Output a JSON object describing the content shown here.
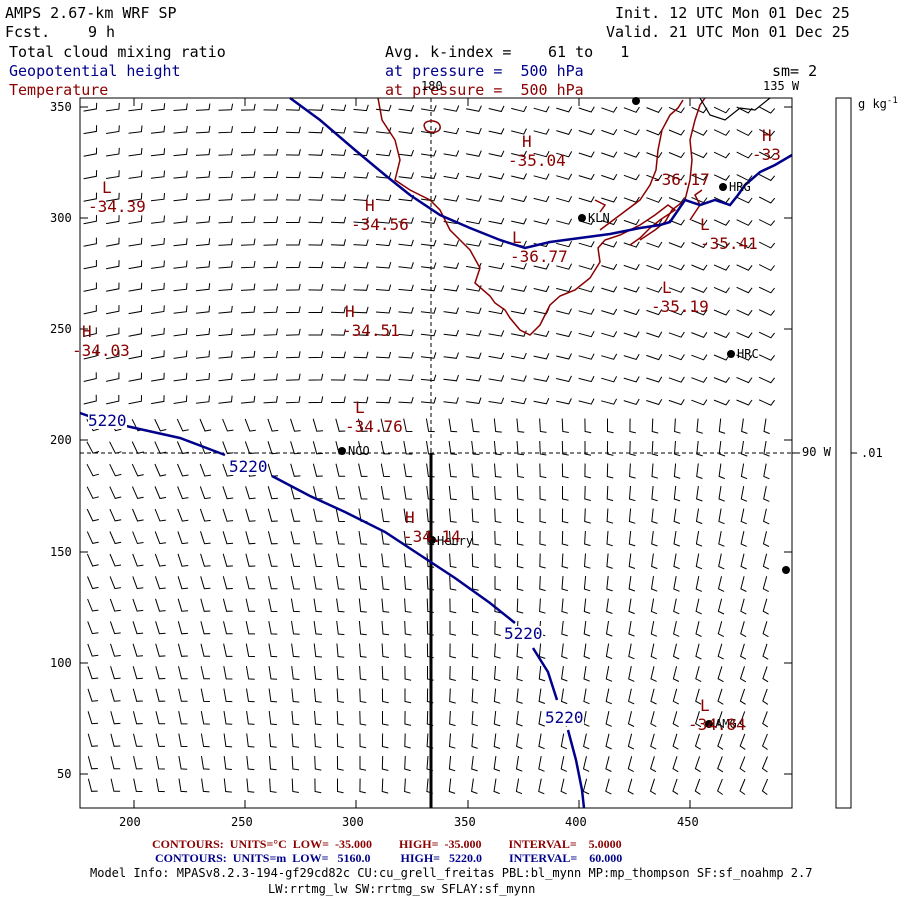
{
  "header": {
    "title": "AMPS 2.67-km WRF SP",
    "fcst_label": "Fcst.",
    "fcst_value": "9 h",
    "init": "Init. 12 UTC Mon 01 Dec 25",
    "valid": "Valid. 21 UTC Mon 01 Dec 25",
    "field1": "Total cloud mixing ratio",
    "field2": "Geopotential height",
    "field3": "Temperature",
    "avg_label": "Avg. k-index =",
    "avg_range": "61 to   1",
    "pressure_line1": "at pressure =  500 hPa",
    "pressure_line2": "at pressure =  500 hPa",
    "smoothing": "sm= 2"
  },
  "map": {
    "lon_labels": {
      "top": "180",
      "topright": "135 W",
      "right": "90 W"
    },
    "x_ticks": [
      "200",
      "250",
      "300",
      "350",
      "400",
      "450"
    ],
    "y_ticks": [
      "350",
      "300",
      "250",
      "200",
      "150",
      "100",
      "50"
    ],
    "stations": [
      {
        "name": "NCO"
      },
      {
        "name": "Henry"
      },
      {
        "name": "KLN"
      },
      {
        "name": "HRG"
      },
      {
        "name": "HRC"
      },
      {
        "name": "AMG"
      }
    ],
    "height_labels": [
      "5220",
      "5220",
      "5220",
      "5220"
    ],
    "temp_extrema": [
      {
        "kind": "L",
        "value": "-34.39"
      },
      {
        "kind": "H",
        "value": "-34.56"
      },
      {
        "kind": "H",
        "value": "-35.04"
      },
      {
        "kind": "L",
        "value": "-36.77"
      },
      {
        "kind": "H",
        "value": "-36.17"
      },
      {
        "kind": "H",
        "value": "-33"
      },
      {
        "kind": "L",
        "value": "-35.41"
      },
      {
        "kind": "L",
        "value": "-35.19"
      },
      {
        "kind": "H",
        "value": "-34.51"
      },
      {
        "kind": "H",
        "value": "-34.03"
      },
      {
        "kind": "L",
        "value": "-34.76"
      },
      {
        "kind": "H",
        "value": "-34.14"
      },
      {
        "kind": "L",
        "value": "-34.84"
      }
    ],
    "colors": {
      "height": "#00008b",
      "temperature": "#8b0000",
      "barbs": "#000000"
    }
  },
  "colorbar": {
    "unit": "g kg",
    "unit_exp": "-1",
    "tick": ".01"
  },
  "footer": {
    "contours_t": "CONTOURS:  UNITS=°C  LOW=  -35.000         HIGH=  -35.000         INTERVAL=    5.0000",
    "contours_z": "CONTOURS:  UNITS=m  LOW=   5160.0          HIGH=   5220.0         INTERVAL=    60.000",
    "model_info": "Model Info: MPASv8.2.3-194-gf29cd82c CU:cu_grell_freitas PBL:bl_mynn MP:mp_thompson SF:sf_noahmp 2.7",
    "model_info2": "LW:rrtmg_lw SW:rrtmg_sw SFLAY:sf_mynn"
  }
}
